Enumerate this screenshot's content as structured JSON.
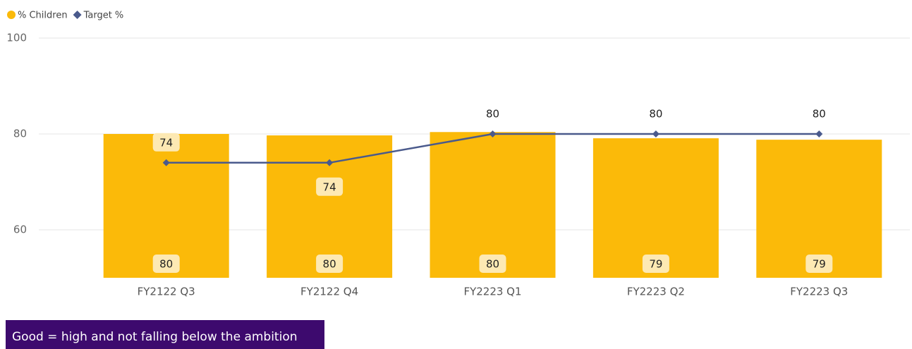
{
  "chart_data": {
    "type": "combo",
    "categories": [
      "FY2122 Q3",
      "FY2122 Q4",
      "FY2223 Q1",
      "FY2223 Q2",
      "FY2223 Q3"
    ],
    "series": [
      {
        "name": "% Children",
        "type": "bar",
        "color": "#fbba09",
        "values": [
          80,
          79.7,
          80.4,
          79.1,
          78.8
        ],
        "value_labels": [
          "80",
          "80",
          "80",
          "79",
          "79"
        ]
      },
      {
        "name": "Target %",
        "type": "line",
        "color": "#4a5a8c",
        "values": [
          74,
          74,
          80,
          80,
          80
        ]
      }
    ],
    "ylim": [
      50,
      100
    ],
    "yticks": [
      60,
      80,
      100
    ],
    "grid": true,
    "legend": "top-left",
    "note": "Good = high and not falling below the ambition"
  }
}
